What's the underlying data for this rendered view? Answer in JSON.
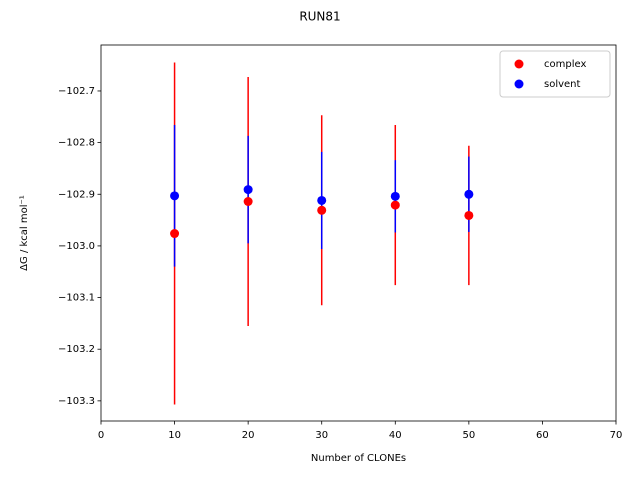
{
  "chart_data": {
    "type": "errorbar-scatter",
    "title": "RUN81",
    "x_label": "Number of CLONEs",
    "y_label": "ΔG / kcal mol⁻¹",
    "x": [
      10,
      20,
      30,
      40,
      50
    ],
    "series": [
      {
        "name": "complex",
        "color": "#ff0000",
        "values": [
          -102.976,
          -102.914,
          -102.931,
          -102.921,
          -102.941
        ],
        "errors": [
          0.331,
          0.241,
          0.184,
          0.155,
          0.135
        ]
      },
      {
        "name": "solvent",
        "color": "#0000ff",
        "values": [
          -102.903,
          -102.891,
          -102.912,
          -102.904,
          -102.9
        ],
        "errors": [
          0.137,
          0.104,
          0.094,
          0.07,
          0.073
        ]
      }
    ],
    "xlim": [
      0,
      70
    ],
    "xticks": [
      0,
      10,
      20,
      30,
      40,
      50,
      60,
      70
    ],
    "ylim": [
      -103.339,
      -102.611
    ],
    "yticks": [
      {
        "value": -103.3,
        "label": "−103.3"
      },
      {
        "value": -103.2,
        "label": "−103.2"
      },
      {
        "value": -103.1,
        "label": "−103.1"
      },
      {
        "value": -103.0,
        "label": "−103.0"
      },
      {
        "value": -102.9,
        "label": "−102.9"
      },
      {
        "value": -102.8,
        "label": "−102.8"
      },
      {
        "value": -102.7,
        "label": "−102.7"
      }
    ],
    "legend": "upper right",
    "grid": false
  }
}
